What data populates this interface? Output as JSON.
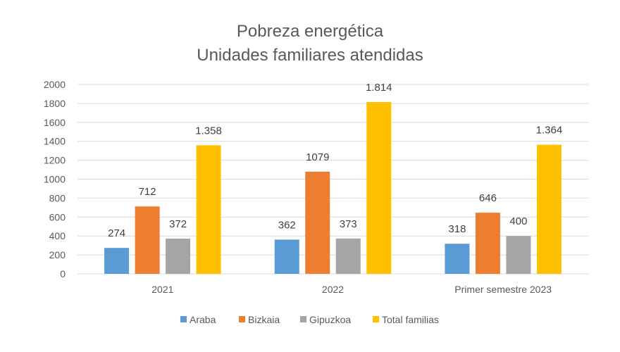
{
  "chart_data": {
    "type": "bar",
    "title": "Pobreza energética",
    "subtitle": "Unidades familiares atendidas",
    "categories": [
      "2021",
      "2022",
      "Primer semestre 2023"
    ],
    "series": [
      {
        "name": "Araba",
        "color": "#5B9BD5",
        "values": [
          274,
          362,
          318
        ],
        "labels": [
          "274",
          "362",
          "318"
        ]
      },
      {
        "name": "Bizkaia",
        "color": "#ED7D31",
        "values": [
          712,
          1079,
          646
        ],
        "labels": [
          "712",
          "1079",
          "646"
        ]
      },
      {
        "name": "Gipuzkoa",
        "color": "#A5A5A5",
        "values": [
          372,
          373,
          400
        ],
        "labels": [
          "372",
          "373",
          "400"
        ]
      },
      {
        "name": "Total familias",
        "color": "#FFC000",
        "values": [
          1358,
          1814,
          1364
        ],
        "labels": [
          "1.358",
          "1.814",
          "1.364"
        ]
      }
    ],
    "yticks": [
      "0",
      "200",
      "400",
      "600",
      "800",
      "1000",
      "1200",
      "1400",
      "1600",
      "1800",
      "2000"
    ],
    "ylim": [
      0,
      2000
    ],
    "grid": true,
    "legend": "bottom"
  }
}
